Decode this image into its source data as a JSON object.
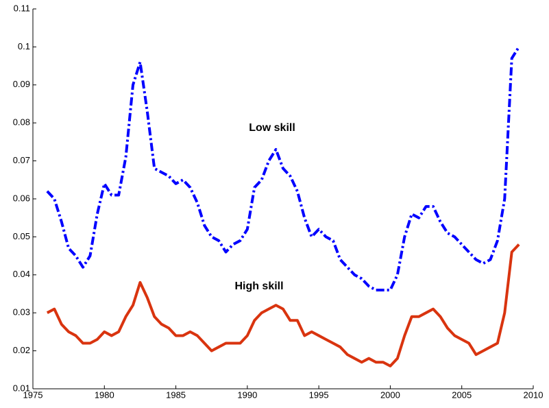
{
  "chart_data": {
    "type": "line",
    "x": [
      1976,
      1976.5,
      1977,
      1977.5,
      1978,
      1978.5,
      1979,
      1979.5,
      1980,
      1980.5,
      1981,
      1981.5,
      1982,
      1982.5,
      1983,
      1983.5,
      1984,
      1984.5,
      1985,
      1985.5,
      1986,
      1986.5,
      1987,
      1987.5,
      1988,
      1988.5,
      1989,
      1989.5,
      1990,
      1990.5,
      1991,
      1991.5,
      1992,
      1992.5,
      1993,
      1993.5,
      1994,
      1994.5,
      1995,
      1995.5,
      1996,
      1996.5,
      1997,
      1997.5,
      1998,
      1998.5,
      1999,
      1999.5,
      2000,
      2000.5,
      2001,
      2001.5,
      2002,
      2002.5,
      2003,
      2003.5,
      2004,
      2004.5,
      2005,
      2005.5,
      2006,
      2006.5,
      2007,
      2007.5,
      2008,
      2008.5,
      2009
    ],
    "series": [
      {
        "name": "Low skill",
        "color": "#0000ff",
        "style": "dashdot",
        "values": [
          0.062,
          0.06,
          0.054,
          0.047,
          0.045,
          0.042,
          0.045,
          0.056,
          0.064,
          0.061,
          0.061,
          0.071,
          0.09,
          0.096,
          0.083,
          0.068,
          0.067,
          0.066,
          0.064,
          0.065,
          0.063,
          0.059,
          0.053,
          0.05,
          0.049,
          0.046,
          0.048,
          0.049,
          0.052,
          0.063,
          0.065,
          0.07,
          0.073,
          0.068,
          0.066,
          0.062,
          0.055,
          0.05,
          0.052,
          0.05,
          0.049,
          0.044,
          0.042,
          0.04,
          0.039,
          0.037,
          0.036,
          0.036,
          0.036,
          0.04,
          0.05,
          0.056,
          0.055,
          0.058,
          0.058,
          0.054,
          0.051,
          0.05,
          0.048,
          0.046,
          0.044,
          0.043,
          0.044,
          0.049,
          0.06,
          0.097,
          0.1
        ]
      },
      {
        "name": "High skill",
        "color": "#d9340f",
        "style": "solid",
        "values": [
          0.03,
          0.031,
          0.027,
          0.025,
          0.024,
          0.022,
          0.022,
          0.023,
          0.025,
          0.024,
          0.025,
          0.029,
          0.032,
          0.038,
          0.034,
          0.029,
          0.027,
          0.026,
          0.024,
          0.024,
          0.025,
          0.024,
          0.022,
          0.02,
          0.021,
          0.022,
          0.022,
          0.022,
          0.024,
          0.028,
          0.03,
          0.031,
          0.032,
          0.031,
          0.028,
          0.028,
          0.024,
          0.025,
          0.024,
          0.023,
          0.022,
          0.021,
          0.019,
          0.018,
          0.017,
          0.018,
          0.017,
          0.017,
          0.016,
          0.018,
          0.024,
          0.029,
          0.029,
          0.03,
          0.031,
          0.029,
          0.026,
          0.024,
          0.023,
          0.022,
          0.019,
          0.02,
          0.021,
          0.022,
          0.03,
          0.046,
          0.048
        ]
      }
    ],
    "xlim": [
      1975,
      2010
    ],
    "xticks": [
      1975,
      1980,
      1985,
      1990,
      1995,
      2000,
      2005,
      2010
    ],
    "ylim": [
      0.01,
      0.11
    ],
    "yticks": [
      0.01,
      0.02,
      0.03,
      0.04,
      0.05,
      0.06,
      0.07,
      0.08,
      0.09,
      0.1,
      0.11
    ],
    "grid": false
  }
}
